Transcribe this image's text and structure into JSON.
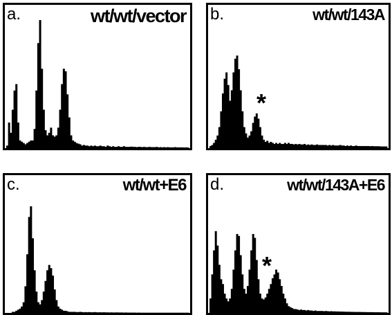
{
  "chart_data": [
    {
      "type": "area",
      "panel_letter": "a.",
      "title": "wt/wt/vector",
      "annotation": "",
      "x": [
        0,
        1,
        2,
        3,
        4,
        5,
        6,
        7,
        8,
        9,
        10,
        11,
        12,
        13,
        14,
        15,
        16,
        17,
        18,
        19,
        20,
        21,
        22,
        23,
        24,
        25,
        26,
        27,
        28,
        29,
        30,
        31,
        32,
        33,
        34,
        35,
        36,
        37,
        38,
        39,
        40,
        41,
        42,
        43,
        44,
        45,
        46,
        47,
        48,
        49,
        50,
        51,
        52,
        53,
        54,
        55,
        56,
        57,
        58,
        59,
        60,
        61,
        62,
        63,
        64,
        65,
        66,
        67,
        68,
        69,
        70,
        71,
        72,
        73,
        74,
        75,
        76,
        77,
        78,
        79,
        80,
        81,
        82,
        83,
        84,
        85,
        86,
        87,
        88,
        89,
        90,
        91,
        92,
        93,
        94,
        95,
        96,
        97,
        98,
        99
      ],
      "values": [
        0.02,
        0.2,
        0.12,
        0.3,
        0.45,
        0.5,
        0.2,
        0.06,
        0.05,
        0.04,
        0.03,
        0.04,
        0.05,
        0.06,
        0.06,
        0.15,
        0.45,
        0.82,
        1.0,
        0.62,
        0.3,
        0.14,
        0.1,
        0.12,
        0.16,
        0.1,
        0.09,
        0.1,
        0.16,
        0.3,
        0.5,
        0.62,
        0.6,
        0.42,
        0.24,
        0.1,
        0.06,
        0.05,
        0.04,
        0.035,
        0.03,
        0.02,
        0.025,
        0.02,
        0.02,
        0.015,
        0.02,
        0.015,
        0.02,
        0.015,
        0.015,
        0.02,
        0.015,
        0.015,
        0.01,
        0.02,
        0.015,
        0.01,
        0.015,
        0.01,
        0.01,
        0.015,
        0.01,
        0.01,
        0.015,
        0.01,
        0.01,
        0.01,
        0.012,
        0.01,
        0.01,
        0.008,
        0.01,
        0.01,
        0.008,
        0.01,
        0.008,
        0.008,
        0.01,
        0.008,
        0.008,
        0.008,
        0.01,
        0.006,
        0.008,
        0.006,
        0.008,
        0.006,
        0.008,
        0.006,
        0.006,
        0.006,
        0.008,
        0.006,
        0.006,
        0.006,
        0.006,
        0.005,
        0.006,
        0.005
      ],
      "ylim": [
        0,
        1
      ]
    },
    {
      "type": "area",
      "panel_letter": "b.",
      "title": "wt/wt/143A",
      "annotation": "*",
      "x": [
        0,
        1,
        2,
        3,
        4,
        5,
        6,
        7,
        8,
        9,
        10,
        11,
        12,
        13,
        14,
        15,
        16,
        17,
        18,
        19,
        20,
        21,
        22,
        23,
        24,
        25,
        26,
        27,
        28,
        29,
        30,
        31,
        32,
        33,
        34,
        35,
        36,
        37,
        38,
        39,
        40,
        41,
        42,
        43,
        44,
        45,
        46,
        47,
        48,
        49,
        50,
        51,
        52,
        53,
        54,
        55,
        56,
        57,
        58,
        59,
        60,
        61,
        62,
        63,
        64,
        65,
        66,
        67,
        68,
        69,
        70,
        71,
        72,
        73,
        74,
        75,
        76,
        77,
        78,
        79,
        80,
        81,
        82,
        83,
        84,
        85,
        86,
        87,
        88,
        89,
        90,
        91,
        92,
        93,
        94,
        95,
        96,
        97,
        98,
        99
      ],
      "values": [
        0.02,
        0.03,
        0.05,
        0.08,
        0.12,
        0.2,
        0.35,
        0.52,
        0.66,
        0.72,
        0.6,
        0.45,
        0.55,
        0.72,
        0.85,
        0.88,
        0.75,
        0.55,
        0.35,
        0.2,
        0.14,
        0.1,
        0.12,
        0.16,
        0.24,
        0.3,
        0.33,
        0.28,
        0.2,
        0.12,
        0.08,
        0.06,
        0.07,
        0.05,
        0.06,
        0.05,
        0.04,
        0.05,
        0.04,
        0.05,
        0.04,
        0.04,
        0.05,
        0.04,
        0.05,
        0.04,
        0.04,
        0.035,
        0.04,
        0.035,
        0.04,
        0.035,
        0.035,
        0.04,
        0.03,
        0.035,
        0.03,
        0.035,
        0.03,
        0.03,
        0.035,
        0.03,
        0.03,
        0.03,
        0.03,
        0.03,
        0.025,
        0.03,
        0.025,
        0.03,
        0.025,
        0.025,
        0.025,
        0.03,
        0.025,
        0.025,
        0.02,
        0.025,
        0.02,
        0.025,
        0.02,
        0.02,
        0.025,
        0.02,
        0.02,
        0.02,
        0.02,
        0.02,
        0.02,
        0.02,
        0.018,
        0.02,
        0.018,
        0.018,
        0.018,
        0.018,
        0.016,
        0.016,
        0.016,
        0.016
      ],
      "ylim": [
        0,
        1
      ]
    },
    {
      "type": "area",
      "panel_letter": "c.",
      "title": "wt/wt+E6",
      "annotation": "",
      "x": [
        0,
        1,
        2,
        3,
        4,
        5,
        6,
        7,
        8,
        9,
        10,
        11,
        12,
        13,
        14,
        15,
        16,
        17,
        18,
        19,
        20,
        21,
        22,
        23,
        24,
        25,
        26,
        27,
        28,
        29,
        30,
        31,
        32,
        33,
        34,
        35,
        36,
        37,
        38,
        39,
        40,
        41,
        42,
        43,
        44,
        45,
        46,
        47,
        48,
        49,
        50,
        51,
        52,
        53,
        54,
        55,
        56,
        57,
        58,
        59,
        60,
        61,
        62,
        63,
        64,
        65,
        66,
        67,
        68,
        69,
        70,
        71,
        72,
        73,
        74,
        75,
        76,
        77,
        78,
        79,
        80,
        81,
        82,
        83,
        84,
        85,
        86,
        87,
        88,
        89,
        90,
        91,
        92,
        93,
        94,
        95,
        96,
        97,
        98,
        99
      ],
      "values": [
        0.0,
        0.0,
        0.0,
        0.01,
        0.01,
        0.02,
        0.03,
        0.04,
        0.06,
        0.1,
        0.25,
        0.55,
        0.9,
        1.0,
        0.7,
        0.4,
        0.2,
        0.1,
        0.08,
        0.12,
        0.2,
        0.3,
        0.4,
        0.45,
        0.42,
        0.35,
        0.22,
        0.12,
        0.06,
        0.04,
        0.03,
        0.02,
        0.02,
        0.015,
        0.01,
        0.01,
        0.01,
        0.01,
        0.008,
        0.008,
        0.01,
        0.008,
        0.006,
        0.008,
        0.006,
        0.008,
        0.006,
        0.006,
        0.008,
        0.006,
        0.005,
        0.006,
        0.005,
        0.006,
        0.005,
        0.005,
        0.004,
        0.005,
        0.004,
        0.004,
        0.005,
        0.004,
        0.004,
        0.004,
        0.003,
        0.004,
        0.003,
        0.003,
        0.003,
        0.003,
        0.003,
        0.002,
        0.003,
        0.002,
        0.002,
        0.002,
        0.002,
        0.002,
        0.002,
        0.002,
        0.002,
        0.002,
        0.002,
        0.002,
        0.002,
        0.002,
        0.002,
        0.002,
        0.002,
        0.002,
        0.002,
        0.002,
        0.002,
        0.002,
        0.002,
        0.002,
        0.002,
        0.002,
        0.002,
        0.002
      ],
      "ylim": [
        0,
        1
      ]
    },
    {
      "type": "area",
      "panel_letter": "d.",
      "title": "wt/wt/143A+E6",
      "annotation": "*",
      "x": [
        0,
        1,
        2,
        3,
        4,
        5,
        6,
        7,
        8,
        9,
        10,
        11,
        12,
        13,
        14,
        15,
        16,
        17,
        18,
        19,
        20,
        21,
        22,
        23,
        24,
        25,
        26,
        27,
        28,
        29,
        30,
        31,
        32,
        33,
        34,
        35,
        36,
        37,
        38,
        39,
        40,
        41,
        42,
        43,
        44,
        45,
        46,
        47,
        48,
        49,
        50,
        51,
        52,
        53,
        54,
        55,
        56,
        57,
        58,
        59,
        60,
        61,
        62,
        63,
        64,
        65,
        66,
        67,
        68,
        69,
        70,
        71,
        72,
        73,
        74,
        75,
        76,
        77,
        78,
        79,
        80,
        81,
        82,
        83,
        84,
        85,
        86,
        87,
        88,
        89,
        90,
        91,
        92,
        93,
        94,
        95,
        96,
        97,
        98,
        99
      ],
      "values": [
        0.15,
        0.4,
        0.65,
        0.85,
        0.7,
        0.5,
        0.35,
        0.3,
        0.2,
        0.15,
        0.12,
        0.15,
        0.25,
        0.45,
        0.65,
        0.82,
        0.8,
        0.6,
        0.4,
        0.25,
        0.2,
        0.28,
        0.45,
        0.65,
        0.82,
        0.78,
        0.55,
        0.35,
        0.2,
        0.15,
        0.14,
        0.16,
        0.2,
        0.25,
        0.3,
        0.36,
        0.4,
        0.45,
        0.42,
        0.35,
        0.28,
        0.2,
        0.15,
        0.1,
        0.07,
        0.06,
        0.05,
        0.04,
        0.04,
        0.035,
        0.03,
        0.035,
        0.03,
        0.03,
        0.025,
        0.03,
        0.025,
        0.025,
        0.02,
        0.025,
        0.02,
        0.02,
        0.02,
        0.02,
        0.018,
        0.02,
        0.018,
        0.016,
        0.018,
        0.016,
        0.016,
        0.015,
        0.015,
        0.014,
        0.014,
        0.013,
        0.012,
        0.012,
        0.012,
        0.011,
        0.011,
        0.01,
        0.01,
        0.01,
        0.01,
        0.009,
        0.009,
        0.009,
        0.008,
        0.008,
        0.008,
        0.008,
        0.007,
        0.007,
        0.007,
        0.007,
        0.006,
        0.006,
        0.006,
        0.006
      ],
      "ylim": [
        0,
        1
      ]
    }
  ],
  "colors": {
    "fill": "#000000",
    "frame": "#000000",
    "background": "#ffffff"
  }
}
